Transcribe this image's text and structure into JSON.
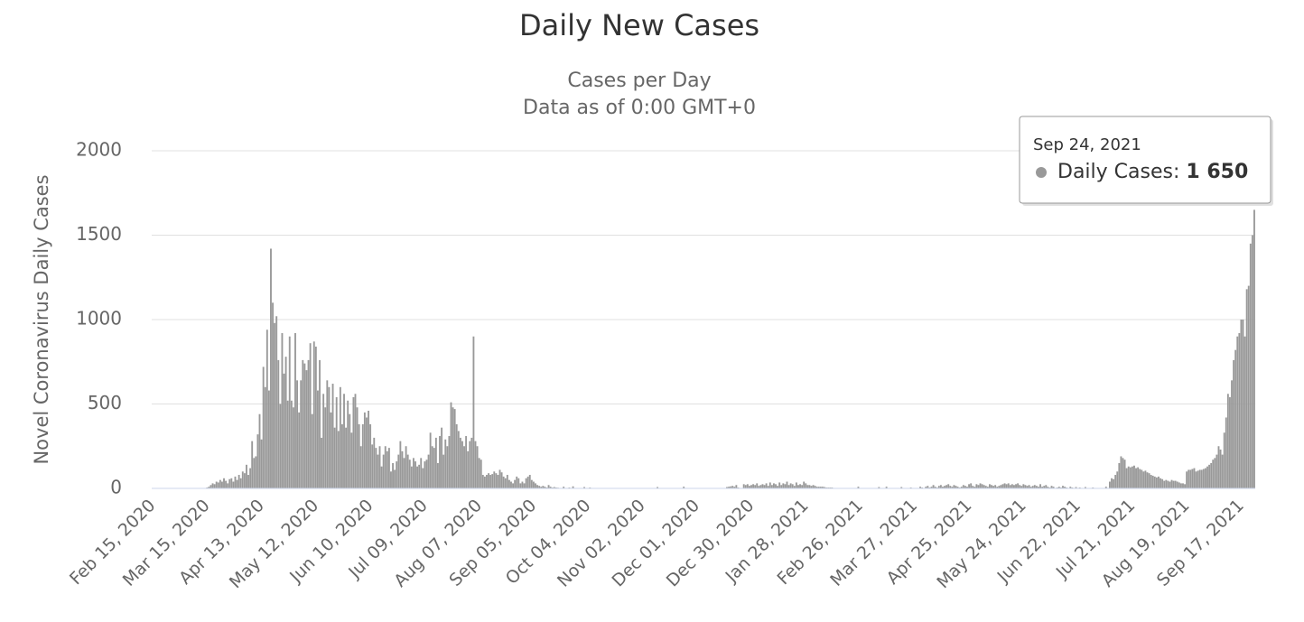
{
  "chart_data": {
    "type": "bar",
    "title": "Daily New Cases",
    "subtitle": [
      "Cases per Day",
      "Data as of 0:00 GMT+0"
    ],
    "y_label": "Novel Coronavirus Daily Cases",
    "color": "#999999",
    "grid": true,
    "ylim": [
      0,
      2000
    ],
    "yticks": [
      0,
      500,
      1000,
      1500,
      2000
    ],
    "tooltip": {
      "title": "Sep 24, 2021",
      "label": "Daily Cases:",
      "value": "1 650"
    },
    "categories": [
      "Feb 15, 2020",
      null,
      null,
      null,
      null,
      null,
      null,
      null,
      null,
      null,
      null,
      null,
      null,
      null,
      null,
      null,
      null,
      null,
      null,
      null,
      null,
      null,
      null,
      null,
      null,
      null,
      null,
      null,
      null,
      "Mar 15, 2020",
      null,
      null,
      null,
      null,
      null,
      null,
      null,
      null,
      null,
      null,
      null,
      null,
      null,
      null,
      null,
      null,
      null,
      null,
      null,
      null,
      null,
      null,
      null,
      null,
      null,
      null,
      null,
      null,
      "Apr 13, 2020",
      null,
      null,
      null,
      null,
      null,
      null,
      null,
      null,
      null,
      null,
      null,
      null,
      null,
      null,
      null,
      null,
      null,
      null,
      null,
      null,
      null,
      null,
      null,
      null,
      null,
      null,
      null,
      null,
      "May 12, 2020",
      null,
      null,
      null,
      null,
      null,
      null,
      null,
      null,
      null,
      null,
      null,
      null,
      null,
      null,
      null,
      null,
      null,
      null,
      null,
      null,
      null,
      null,
      null,
      null,
      null,
      null,
      null,
      null,
      "Jun 10, 2020",
      null,
      null,
      null,
      null,
      null,
      null,
      null,
      null,
      null,
      null,
      null,
      null,
      null,
      null,
      null,
      null,
      null,
      null,
      null,
      null,
      null,
      null,
      null,
      null,
      null,
      null,
      null,
      null,
      "Jul 09, 2020",
      null,
      null,
      null,
      null,
      null,
      null,
      null,
      null,
      null,
      null,
      null,
      null,
      null,
      null,
      null,
      null,
      null,
      null,
      null,
      null,
      null,
      null,
      null,
      null,
      null,
      null,
      null,
      null,
      "Aug 07, 2020",
      null,
      null,
      null,
      null,
      null,
      null,
      null,
      null,
      null,
      null,
      null,
      null,
      null,
      null,
      null,
      null,
      null,
      null,
      null,
      null,
      null,
      null,
      null,
      null,
      null,
      null,
      null,
      null,
      "Sep 05, 2020",
      null,
      null,
      null,
      null,
      null,
      null,
      null,
      null,
      null,
      null,
      null,
      null,
      null,
      null,
      null,
      null,
      null,
      null,
      null,
      null,
      null,
      null,
      null,
      null,
      null,
      null,
      null,
      null,
      "Oct 04, 2020",
      null,
      null,
      null,
      null,
      null,
      null,
      null,
      null,
      null,
      null,
      null,
      null,
      null,
      null,
      null,
      null,
      null,
      null,
      null,
      null,
      null,
      null,
      null,
      null,
      null,
      null,
      null,
      null,
      "Nov 02, 2020",
      null,
      null,
      null,
      null,
      null,
      null,
      null,
      null,
      null,
      null,
      null,
      null,
      null,
      null,
      null,
      null,
      null,
      null,
      null,
      null,
      null,
      null,
      null,
      null,
      null,
      null,
      null,
      null,
      "Dec 01, 2020",
      null,
      null,
      null,
      null,
      null,
      null,
      null,
      null,
      null,
      null,
      null,
      null,
      null,
      null,
      null,
      null,
      null,
      null,
      null,
      null,
      null,
      null,
      null,
      null,
      null,
      null,
      null,
      null,
      "Dec 30, 2020",
      null,
      null,
      null,
      null,
      null,
      null,
      null,
      null,
      null,
      null,
      null,
      null,
      null,
      null,
      null,
      null,
      null,
      null,
      null,
      null,
      null,
      null,
      null,
      null,
      null,
      null,
      null,
      null,
      "Jan 28, 2021",
      null,
      null,
      null,
      null,
      null,
      null,
      null,
      null,
      null,
      null,
      null,
      null,
      null,
      null,
      null,
      null,
      null,
      null,
      null,
      null,
      null,
      null,
      null,
      null,
      null,
      null,
      null,
      null,
      "Feb 26, 2021",
      null,
      null,
      null,
      null,
      null,
      null,
      null,
      null,
      null,
      null,
      null,
      null,
      null,
      null,
      null,
      null,
      null,
      null,
      null,
      null,
      null,
      null,
      null,
      null,
      null,
      null,
      null,
      null,
      "Mar 27, 2021",
      null,
      null,
      null,
      null,
      null,
      null,
      null,
      null,
      null,
      null,
      null,
      null,
      null,
      null,
      null,
      null,
      null,
      null,
      null,
      null,
      null,
      null,
      null,
      null,
      null,
      null,
      null,
      null,
      "Apr 25, 2021",
      null,
      null,
      null,
      null,
      null,
      null,
      null,
      null,
      null,
      null,
      null,
      null,
      null,
      null,
      null,
      null,
      null,
      null,
      null,
      null,
      null,
      null,
      null,
      null,
      null,
      null,
      null,
      null,
      "May 24, 2021",
      null,
      null,
      null,
      null,
      null,
      null,
      null,
      null,
      null,
      null,
      null,
      null,
      null,
      null,
      null,
      null,
      null,
      null,
      null,
      null,
      null,
      null,
      null,
      null,
      null,
      null,
      null,
      null,
      "Jun 22, 2021",
      null,
      null,
      null,
      null,
      null,
      null,
      null,
      null,
      null,
      null,
      null,
      null,
      null,
      null,
      null,
      null,
      null,
      null,
      null,
      null,
      null,
      null,
      null,
      null,
      null,
      null,
      null,
      null,
      "Jul 21, 2021",
      null,
      null,
      null,
      null,
      null,
      null,
      null,
      null,
      null,
      null,
      null,
      null,
      null,
      null,
      null,
      null,
      null,
      null,
      null,
      null,
      null,
      null,
      null,
      null,
      null,
      null,
      null,
      null,
      "Aug 19, 2021",
      null,
      null,
      null,
      null,
      null,
      null,
      null,
      null,
      null,
      null,
      null,
      null,
      null,
      null,
      null,
      null,
      null,
      null,
      null,
      null,
      null,
      null,
      null,
      null,
      null,
      null,
      null,
      null,
      "Sep 17, 2021",
      null,
      null,
      null,
      null,
      null,
      null,
      null
    ],
    "values": [
      0,
      0,
      0,
      0,
      0,
      0,
      0,
      0,
      0,
      0,
      0,
      0,
      0,
      0,
      0,
      0,
      0,
      0,
      0,
      0,
      0,
      0,
      0,
      0,
      0,
      0,
      0,
      0,
      0,
      5,
      10,
      20,
      30,
      25,
      40,
      35,
      50,
      40,
      60,
      45,
      30,
      55,
      60,
      40,
      70,
      50,
      80,
      60,
      100,
      90,
      140,
      80,
      120,
      280,
      180,
      190,
      320,
      440,
      290,
      720,
      600,
      940,
      580,
      1420,
      1100,
      980,
      1020,
      760,
      500,
      920,
      680,
      780,
      520,
      900,
      520,
      480,
      920,
      640,
      450,
      640,
      760,
      740,
      700,
      760,
      860,
      440,
      870,
      840,
      580,
      760,
      300,
      560,
      480,
      640,
      600,
      450,
      620,
      360,
      540,
      340,
      600,
      380,
      560,
      360,
      520,
      440,
      330,
      540,
      560,
      480,
      380,
      250,
      380,
      450,
      420,
      460,
      380,
      260,
      300,
      240,
      200,
      250,
      130,
      200,
      250,
      220,
      240,
      100,
      150,
      110,
      160,
      200,
      280,
      220,
      180,
      250,
      200,
      170,
      130,
      180,
      160,
      130,
      140,
      180,
      120,
      160,
      170,
      200,
      330,
      250,
      240,
      300,
      150,
      310,
      360,
      200,
      290,
      250,
      310,
      510,
      480,
      470,
      380,
      340,
      300,
      280,
      250,
      310,
      220,
      280,
      300,
      900,
      280,
      250,
      180,
      170,
      80,
      70,
      80,
      90,
      80,
      85,
      100,
      90,
      80,
      110,
      95,
      70,
      60,
      80,
      50,
      40,
      30,
      50,
      70,
      60,
      30,
      40,
      30,
      60,
      70,
      80,
      50,
      40,
      30,
      20,
      15,
      10,
      15,
      10,
      5,
      20,
      10,
      5,
      8,
      5,
      4,
      0,
      0,
      10,
      0,
      0,
      5,
      0,
      12,
      0,
      0,
      0,
      0,
      0,
      8,
      0,
      0,
      5,
      0,
      0,
      0,
      0,
      0,
      0,
      0,
      0,
      0,
      0,
      0,
      0,
      0,
      0,
      0,
      0,
      0,
      0,
      0,
      0,
      0,
      0,
      0,
      0,
      0,
      0,
      0,
      0,
      0,
      0,
      0,
      0,
      0,
      0,
      0,
      8,
      0,
      0,
      0,
      0,
      0,
      0,
      0,
      0,
      0,
      0,
      0,
      0,
      0,
      10,
      0,
      0,
      0,
      0,
      0,
      0,
      0,
      0,
      0,
      0,
      0,
      0,
      0,
      0,
      0,
      0,
      0,
      0,
      0,
      0,
      0,
      0,
      8,
      10,
      12,
      15,
      10,
      20,
      5,
      0,
      0,
      25,
      20,
      25,
      15,
      20,
      25,
      20,
      30,
      15,
      20,
      25,
      20,
      30,
      15,
      35,
      20,
      30,
      25,
      15,
      35,
      20,
      30,
      25,
      40,
      20,
      30,
      25,
      15,
      35,
      20,
      25,
      20,
      40,
      30,
      20,
      20,
      15,
      20,
      15,
      10,
      10,
      10,
      10,
      8,
      5,
      5,
      5,
      5,
      0,
      0,
      0,
      0,
      0,
      0,
      0,
      0,
      0,
      0,
      0,
      0,
      0,
      10,
      0,
      0,
      0,
      0,
      0,
      0,
      0,
      0,
      0,
      0,
      8,
      0,
      0,
      0,
      10,
      0,
      0,
      0,
      0,
      0,
      0,
      0,
      8,
      0,
      0,
      0,
      0,
      5,
      0,
      0,
      0,
      0,
      10,
      5,
      0,
      10,
      15,
      5,
      10,
      20,
      10,
      5,
      15,
      20,
      10,
      15,
      20,
      25,
      15,
      10,
      20,
      15,
      10,
      5,
      10,
      20,
      15,
      10,
      25,
      30,
      15,
      10,
      25,
      20,
      30,
      25,
      20,
      15,
      10,
      25,
      20,
      15,
      20,
      10,
      15,
      20,
      25,
      30,
      25,
      30,
      20,
      25,
      20,
      25,
      30,
      20,
      15,
      25,
      20,
      15,
      20,
      10,
      15,
      20,
      15,
      10,
      25,
      10,
      15,
      20,
      10,
      5,
      15,
      10,
      0,
      5,
      10,
      5,
      15,
      10,
      5,
      0,
      10,
      5,
      0,
      8,
      0,
      5,
      0,
      0,
      8,
      0,
      0,
      0,
      5,
      0,
      0,
      0,
      0,
      0,
      0,
      10,
      0,
      40,
      60,
      55,
      80,
      100,
      150,
      190,
      180,
      170,
      120,
      130,
      125,
      130,
      135,
      120,
      125,
      115,
      110,
      100,
      105,
      95,
      90,
      80,
      75,
      70,
      65,
      70,
      60,
      55,
      45,
      50,
      45,
      40,
      50,
      45,
      45,
      40,
      35,
      30,
      30,
      25,
      100,
      110,
      110,
      115,
      120,
      100,
      105,
      110,
      110,
      115,
      120,
      130,
      140,
      150,
      170,
      180,
      200,
      250,
      230,
      200,
      330,
      420,
      560,
      540,
      640,
      760,
      820,
      900,
      920,
      1000,
      1000,
      900,
      1180,
      1200,
      1450,
      1500,
      1650
    ]
  }
}
